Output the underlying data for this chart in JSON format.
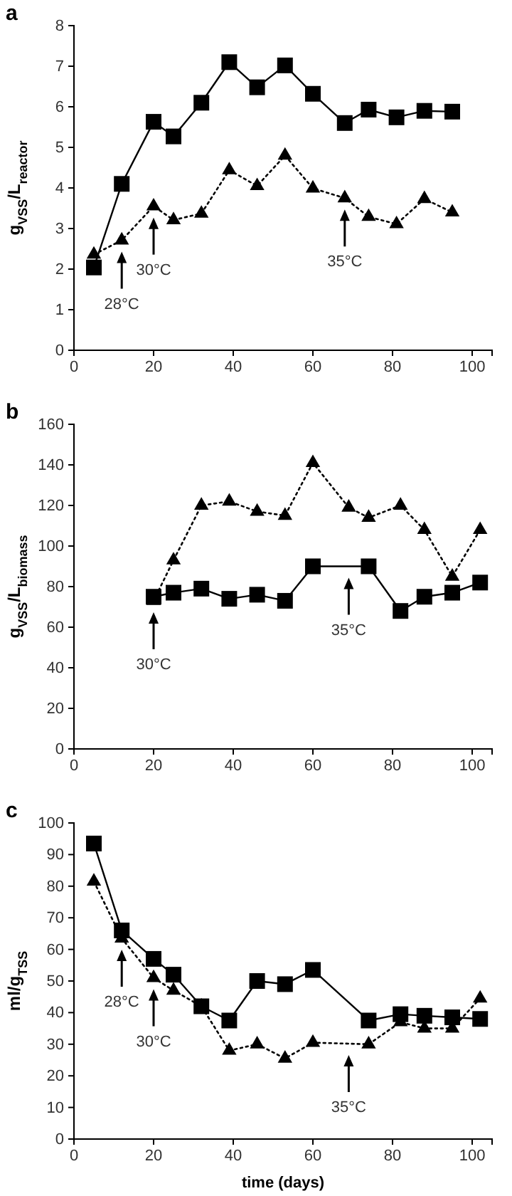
{
  "chart_data": [
    {
      "type": "line",
      "title": "a",
      "ylabel": "g$_{VSS}$/L$_{reactor}$",
      "xlim": [
        0,
        105
      ],
      "xticks": [
        0,
        20,
        40,
        60,
        80,
        100
      ],
      "ylim": [
        0,
        8
      ],
      "yticks": [
        0,
        1,
        2,
        3,
        4,
        5,
        6,
        7,
        8
      ],
      "x": [
        5,
        12,
        20,
        25,
        32,
        39,
        46,
        53,
        60,
        68,
        74,
        81,
        88,
        95
      ],
      "series": [
        {
          "color": "#000000",
          "marker": "square",
          "line_style": "solid",
          "values": [
            2.04,
            4.1,
            5.63,
            5.27,
            6.1,
            7.1,
            6.48,
            7.02,
            6.32,
            5.6,
            5.93,
            5.74,
            5.9,
            5.88
          ]
        },
        {
          "color": "#000000",
          "marker": "triangle",
          "line_style": "dotted",
          "values": [
            2.36,
            2.71,
            3.55,
            3.21,
            3.37,
            4.44,
            4.05,
            4.8,
            3.99,
            3.75,
            3.29,
            3.11,
            3.73,
            3.4
          ]
        }
      ],
      "ref_lines": [
        {
          "axis": "x",
          "value": 12,
          "label": "28°C"
        },
        {
          "axis": "x",
          "value": 20,
          "label": "30°C"
        },
        {
          "axis": "x",
          "value": 68,
          "label": "35°C"
        }
      ]
    },
    {
      "type": "line",
      "title": "b",
      "ylabel": "g$_{VSS}$/L$_{biomass}$",
      "xlim": [
        0,
        105
      ],
      "xticks": [
        0,
        20,
        40,
        60,
        80,
        100
      ],
      "ylim": [
        0,
        160
      ],
      "yticks": [
        0,
        20,
        40,
        60,
        80,
        100,
        120,
        140,
        160
      ],
      "series": [
        {
          "color": "#000000",
          "marker": "square",
          "line_style": "solid",
          "x": [
            20,
            25,
            32,
            39,
            46,
            53,
            60,
            74,
            82,
            88,
            95,
            102
          ],
          "values": [
            75,
            77,
            79,
            74,
            76,
            73,
            90,
            90,
            68,
            75,
            77,
            82
          ]
        },
        {
          "color": "#000000",
          "marker": "triangle",
          "line_style": "dotted",
          "x": [
            20,
            25,
            32,
            39,
            46,
            53,
            60,
            69,
            74,
            82,
            88,
            95,
            102
          ],
          "values": [
            73,
            93,
            120,
            122,
            117,
            115,
            141,
            119,
            114,
            120,
            108,
            85,
            108
          ]
        }
      ],
      "ref_lines": [
        {
          "axis": "x",
          "value": 20,
          "label": "30°C"
        },
        {
          "axis": "x",
          "value": 69,
          "label": "35°C"
        }
      ]
    },
    {
      "type": "line",
      "title": "c",
      "xlabel": "time (days)",
      "ylabel": "ml/g$_{TSS}$",
      "xlim": [
        0,
        105
      ],
      "xticks": [
        0,
        20,
        40,
        60,
        80,
        100
      ],
      "ylim": [
        0,
        100
      ],
      "yticks": [
        0,
        10,
        20,
        30,
        40,
        50,
        60,
        70,
        80,
        90,
        100
      ],
      "x": [
        5,
        12,
        20,
        25,
        32,
        39,
        46,
        53,
        60,
        74,
        82,
        88,
        95,
        102
      ],
      "series": [
        {
          "color": "#000000",
          "marker": "square",
          "line_style": "solid",
          "values": [
            93.5,
            66,
            57,
            52,
            42,
            37.5,
            50,
            49,
            53.5,
            37.5,
            39.5,
            39,
            38.5,
            38
          ]
        },
        {
          "color": "#000000",
          "marker": "triangle",
          "line_style": "dotted",
          "values": [
            81.5,
            63.5,
            51,
            47,
            42,
            28,
            30,
            25.5,
            30.5,
            30,
            37,
            35,
            35,
            44.5
          ]
        }
      ],
      "ref_lines": [
        {
          "axis": "x",
          "value": 12,
          "label": "28°C"
        },
        {
          "axis": "x",
          "value": 20,
          "label": "30°C"
        },
        {
          "axis": "x",
          "value": 69,
          "label": "35°C"
        }
      ]
    }
  ]
}
